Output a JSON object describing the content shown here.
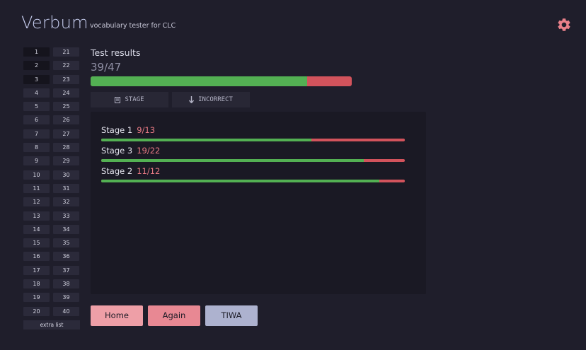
{
  "app": {
    "title": "Verbum",
    "subtitle": "vocabulary tester for CLC"
  },
  "sidebar": {
    "lists_left": [
      "1",
      "2",
      "3",
      "4",
      "5",
      "6",
      "7",
      "8",
      "9",
      "10",
      "11",
      "12",
      "13",
      "14",
      "15",
      "16",
      "17",
      "18",
      "19",
      "20"
    ],
    "lists_right": [
      "21",
      "22",
      "23",
      "24",
      "25",
      "26",
      "27",
      "28",
      "29",
      "30",
      "31",
      "32",
      "33",
      "34",
      "35",
      "36",
      "37",
      "38",
      "39",
      "40"
    ],
    "selected": [
      "1",
      "2",
      "3"
    ],
    "extra_label": "extra list"
  },
  "results": {
    "heading": "Test results",
    "score": "39/47",
    "correct": 39,
    "total": 47
  },
  "tabs": [
    {
      "icon": "list-icon",
      "label": "STAGE"
    },
    {
      "icon": "arrow-down-icon",
      "label": "INCORRECT"
    }
  ],
  "stages": [
    {
      "label": "Stage 1",
      "count": "9/13",
      "correct": 9,
      "total": 13
    },
    {
      "label": "Stage 3",
      "count": "19/22",
      "correct": 19,
      "total": 22
    },
    {
      "label": "Stage 2",
      "count": "11/12",
      "correct": 11,
      "total": 12
    }
  ],
  "buttons": {
    "home": "Home",
    "again": "Again",
    "tiwa": "TIWA"
  },
  "colors": {
    "correct": "#53b053",
    "incorrect": "#d2535c",
    "accent": "#e8808a",
    "home_button": "#ee9fa7",
    "again_button": "#e88893",
    "tiwa_button": "#adb2cf"
  }
}
